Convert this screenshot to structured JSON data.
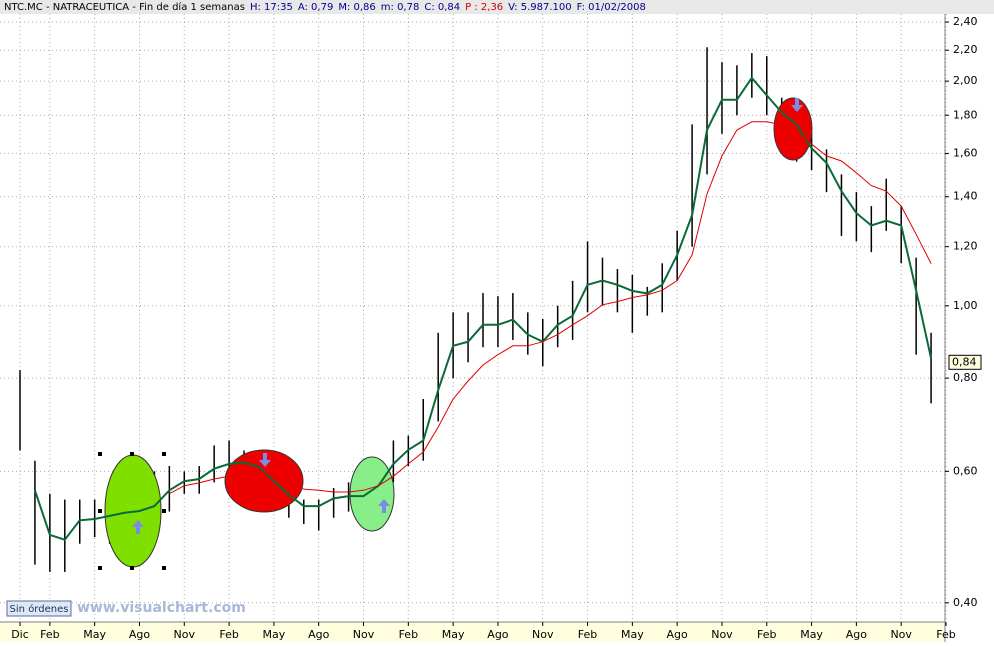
{
  "header": {
    "title": "NTC.MC - NATRACEUTICA - Fin de día 1 semanas",
    "fields": [
      {
        "text": "H: 17:35",
        "color": "#00008b"
      },
      {
        "text": "A: 0,79",
        "color": "#00008b"
      },
      {
        "text": "M: 0,86",
        "color": "#00008b"
      },
      {
        "text": "m: 0,78",
        "color": "#00008b"
      },
      {
        "text": "C: 0,84",
        "color": "#00008b"
      },
      {
        "text": "P : 2,36",
        "color": "#d00000"
      },
      {
        "text": "V: 5.987.100",
        "color": "#00008b"
      },
      {
        "text": "F: 01/02/2008",
        "color": "#00008b"
      }
    ]
  },
  "button": "Sin órdenes",
  "watermark": "www.visualchart.com",
  "chart_data": {
    "type": "line",
    "log_scale": true,
    "grid": true,
    "categories": [
      "Dic",
      null,
      "Feb",
      null,
      null,
      "May",
      null,
      null,
      "Ago",
      null,
      null,
      "Nov",
      null,
      null,
      "Feb",
      null,
      null,
      "May",
      null,
      null,
      "Ago",
      null,
      null,
      "Nov",
      null,
      null,
      "Feb",
      null,
      null,
      "May",
      null,
      null,
      "Ago",
      null,
      null,
      "Nov",
      null,
      null,
      "Feb",
      null,
      null,
      "May",
      null,
      null,
      "Ago",
      null,
      null,
      "Nov",
      null,
      null,
      "Feb",
      null,
      null,
      "May",
      null,
      null,
      "Ago",
      null,
      null,
      "Nov",
      null,
      null,
      "Feb"
    ],
    "ylim": [
      0.377,
      2.46
    ],
    "yticks": [
      {
        "value": 0.4,
        "label": "0,40"
      },
      {
        "value": 0.6,
        "label": "0,60"
      },
      {
        "value": 0.8,
        "label": "0,80"
      },
      {
        "value": 1.0,
        "label": "1,00"
      },
      {
        "value": 1.2,
        "label": "1,20"
      },
      {
        "value": 1.4,
        "label": "1,40"
      },
      {
        "value": 1.6,
        "label": "1,60"
      },
      {
        "value": 1.8,
        "label": "1,80"
      },
      {
        "value": 2.0,
        "label": "2,00"
      },
      {
        "value": 2.2,
        "label": "2,20"
      },
      {
        "value": 2.4,
        "label": "2,40"
      }
    ],
    "last": {
      "value": 0.84,
      "label": "0,84"
    },
    "bars": {
      "color": "#000000",
      "high": [
        0.82,
        0.62,
        0.56,
        0.55,
        0.55,
        0.55,
        0.56,
        0.58,
        0.59,
        0.6,
        0.61,
        0.6,
        0.61,
        0.65,
        0.66,
        0.64,
        0.63,
        0.6,
        0.58,
        0.55,
        0.55,
        0.57,
        0.58,
        0.58,
        0.62,
        0.66,
        0.67,
        0.75,
        0.92,
        0.98,
        0.98,
        1.04,
        1.03,
        1.04,
        0.98,
        0.96,
        1.0,
        1.08,
        1.22,
        1.16,
        1.12,
        1.1,
        1.06,
        1.14,
        1.26,
        1.75,
        2.22,
        2.12,
        2.1,
        2.18,
        2.16,
        1.9,
        1.82,
        1.7,
        1.62,
        1.5,
        1.42,
        1.36,
        1.48,
        1.36,
        1.16,
        0.92,
        null
      ],
      "low": [
        0.64,
        0.45,
        0.44,
        0.44,
        0.48,
        0.49,
        0.48,
        0.47,
        0.48,
        0.51,
        0.53,
        0.56,
        0.56,
        0.58,
        0.58,
        0.57,
        0.55,
        0.53,
        0.52,
        0.51,
        0.5,
        0.52,
        0.53,
        0.53,
        0.55,
        0.58,
        0.61,
        0.62,
        0.7,
        0.8,
        0.84,
        0.88,
        0.88,
        0.9,
        0.86,
        0.83,
        0.88,
        0.9,
        0.98,
        1.0,
        0.98,
        0.92,
        0.97,
        0.98,
        1.08,
        1.2,
        1.5,
        1.7,
        1.8,
        1.9,
        1.8,
        1.7,
        1.56,
        1.52,
        1.42,
        1.24,
        1.22,
        1.18,
        1.26,
        1.14,
        0.86,
        0.74,
        null
      ]
    },
    "series": [
      {
        "color": "#0a6b3a",
        "values": [
          null,
          0.566,
          0.493,
          0.486,
          0.516,
          0.518,
          0.523,
          0.528,
          0.531,
          0.539,
          0.566,
          0.582,
          0.586,
          0.605,
          0.614,
          0.617,
          0.608,
          0.582,
          0.558,
          0.539,
          0.539,
          0.552,
          0.556,
          0.556,
          0.574,
          0.614,
          0.641,
          0.66,
          0.771,
          0.884,
          0.895,
          0.943,
          0.943,
          0.958,
          0.915,
          0.895,
          0.943,
          0.97,
          1.067,
          1.081,
          1.067,
          1.047,
          1.039,
          1.067,
          1.17,
          1.323,
          1.72,
          1.888,
          1.888,
          2.02,
          1.914,
          1.816,
          1.747,
          1.626,
          1.554,
          1.424,
          1.331,
          1.281,
          1.3,
          1.281,
          1.049,
          0.85,
          null
        ]
      },
      {
        "color": "#e00000",
        "values": [
          null,
          null,
          null,
          null,
          null,
          null,
          null,
          null,
          null,
          null,
          0.56,
          0.574,
          0.579,
          0.586,
          0.591,
          0.6,
          0.602,
          0.591,
          0.577,
          0.568,
          0.566,
          0.563,
          0.563,
          0.566,
          0.574,
          0.591,
          0.614,
          0.637,
          0.688,
          0.75,
          0.793,
          0.833,
          0.86,
          0.884,
          0.884,
          0.895,
          0.915,
          0.943,
          0.97,
          1.003,
          1.013,
          1.026,
          1.034,
          1.049,
          1.081,
          1.17,
          1.412,
          1.588,
          1.72,
          1.764,
          1.764,
          1.747,
          1.714,
          1.646,
          1.588,
          1.563,
          1.507,
          1.449,
          1.424,
          1.36,
          1.247,
          1.139,
          null
        ]
      }
    ]
  }
}
